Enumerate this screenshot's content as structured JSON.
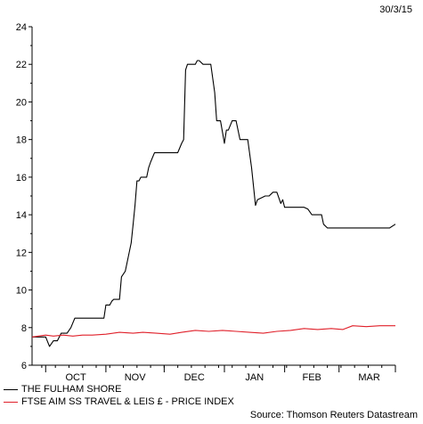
{
  "date_stamp": "30/3/15",
  "source": "Source: Thomson Reuters Datastream",
  "chart_data": {
    "type": "line",
    "title": "",
    "xlabel": "",
    "ylabel": "",
    "ylim": [
      6,
      24
    ],
    "xlim": [
      "2014-09-24",
      "2015-03-30"
    ],
    "y_ticks": [
      6,
      8,
      10,
      12,
      14,
      16,
      18,
      20,
      22,
      24
    ],
    "x_ticks": [
      {
        "label": "OCT",
        "date": "2014-10-01"
      },
      {
        "label": "NOV",
        "date": "2014-11-01"
      },
      {
        "label": "DEC",
        "date": "2014-12-01"
      },
      {
        "label": "JAN",
        "date": "2015-01-01"
      },
      {
        "label": "FEB",
        "date": "2015-02-01"
      },
      {
        "label": "MAR",
        "date": "2015-03-01"
      }
    ],
    "grid": false,
    "legend_position": "bottom-left",
    "series": [
      {
        "name": "THE FULHAM SHORE",
        "color": "#000000",
        "points": [
          [
            "2014-09-24",
            7.5
          ],
          [
            "2014-10-01",
            7.5
          ],
          [
            "2014-10-03",
            7.0
          ],
          [
            "2014-10-05",
            7.3
          ],
          [
            "2014-10-07",
            7.3
          ],
          [
            "2014-10-09",
            7.7
          ],
          [
            "2014-10-12",
            7.7
          ],
          [
            "2014-10-14",
            8.0
          ],
          [
            "2014-10-16",
            8.5
          ],
          [
            "2014-10-28",
            8.5
          ],
          [
            "2014-10-31",
            8.5
          ],
          [
            "2014-11-01",
            9.2
          ],
          [
            "2014-11-03",
            9.2
          ],
          [
            "2014-11-04",
            9.4
          ],
          [
            "2014-11-05",
            9.5
          ],
          [
            "2014-11-08",
            9.5
          ],
          [
            "2014-11-09",
            10.7
          ],
          [
            "2014-11-11",
            11.0
          ],
          [
            "2014-11-12",
            11.5
          ],
          [
            "2014-11-13",
            12.0
          ],
          [
            "2014-11-14",
            12.5
          ],
          [
            "2014-11-15",
            13.5
          ],
          [
            "2014-11-16",
            14.5
          ],
          [
            "2014-11-17",
            15.8
          ],
          [
            "2014-11-18",
            15.8
          ],
          [
            "2014-11-19",
            16.0
          ],
          [
            "2014-11-22",
            16.0
          ],
          [
            "2014-11-23",
            16.5
          ],
          [
            "2014-11-24",
            16.8
          ],
          [
            "2014-11-26",
            17.3
          ],
          [
            "2014-12-08",
            17.3
          ],
          [
            "2014-12-10",
            17.8
          ],
          [
            "2014-12-11",
            18.0
          ],
          [
            "2014-12-12",
            21.7
          ],
          [
            "2014-12-13",
            22.0
          ],
          [
            "2014-12-17",
            22.0
          ],
          [
            "2014-12-18",
            22.2
          ],
          [
            "2014-12-19",
            22.2
          ],
          [
            "2014-12-21",
            22.0
          ],
          [
            "2014-12-25",
            22.0
          ],
          [
            "2014-12-27",
            20.5
          ],
          [
            "2014-12-28",
            19.0
          ],
          [
            "2014-12-30",
            19.0
          ],
          [
            "2015-01-01",
            17.8
          ],
          [
            "2015-01-02",
            18.5
          ],
          [
            "2015-01-03",
            18.5
          ],
          [
            "2015-01-05",
            19.0
          ],
          [
            "2015-01-07",
            19.0
          ],
          [
            "2015-01-09",
            18.0
          ],
          [
            "2015-01-13",
            18.0
          ],
          [
            "2015-01-15",
            16.5
          ],
          [
            "2015-01-17",
            14.5
          ],
          [
            "2015-01-18",
            14.8
          ],
          [
            "2015-01-20",
            14.9
          ],
          [
            "2015-01-22",
            15.0
          ],
          [
            "2015-01-24",
            15.0
          ],
          [
            "2015-01-26",
            15.2
          ],
          [
            "2015-01-28",
            15.2
          ],
          [
            "2015-01-29",
            14.9
          ],
          [
            "2015-01-30",
            14.6
          ],
          [
            "2015-01-31",
            14.8
          ],
          [
            "2015-02-01",
            14.4
          ],
          [
            "2015-02-11",
            14.4
          ],
          [
            "2015-02-13",
            14.3
          ],
          [
            "2015-02-15",
            14.0
          ],
          [
            "2015-02-20",
            14.0
          ],
          [
            "2015-02-21",
            13.5
          ],
          [
            "2015-02-23",
            13.3
          ],
          [
            "2015-03-27",
            13.3
          ],
          [
            "2015-03-30",
            13.5
          ]
        ]
      },
      {
        "name": "FTSE AIM SS TRAVEL & LEIS £ - PRICE INDEX",
        "color": "#e0202a",
        "points": [
          [
            "2014-09-24",
            7.5
          ],
          [
            "2014-10-01",
            7.6
          ],
          [
            "2014-10-05",
            7.55
          ],
          [
            "2014-10-10",
            7.6
          ],
          [
            "2014-10-15",
            7.55
          ],
          [
            "2014-10-20",
            7.6
          ],
          [
            "2014-10-25",
            7.6
          ],
          [
            "2014-11-01",
            7.65
          ],
          [
            "2014-11-08",
            7.75
          ],
          [
            "2014-11-15",
            7.7
          ],
          [
            "2014-11-20",
            7.75
          ],
          [
            "2014-11-27",
            7.7
          ],
          [
            "2014-12-04",
            7.65
          ],
          [
            "2014-12-10",
            7.75
          ],
          [
            "2014-12-17",
            7.85
          ],
          [
            "2014-12-24",
            7.8
          ],
          [
            "2014-12-31",
            7.85
          ],
          [
            "2015-01-07",
            7.8
          ],
          [
            "2015-01-14",
            7.75
          ],
          [
            "2015-01-21",
            7.7
          ],
          [
            "2015-01-28",
            7.8
          ],
          [
            "2015-02-04",
            7.85
          ],
          [
            "2015-02-11",
            7.95
          ],
          [
            "2015-02-18",
            7.9
          ],
          [
            "2015-02-25",
            7.95
          ],
          [
            "2015-03-03",
            7.9
          ],
          [
            "2015-03-08",
            8.1
          ],
          [
            "2015-03-15",
            8.05
          ],
          [
            "2015-03-22",
            8.1
          ],
          [
            "2015-03-30",
            8.1
          ]
        ]
      }
    ]
  }
}
